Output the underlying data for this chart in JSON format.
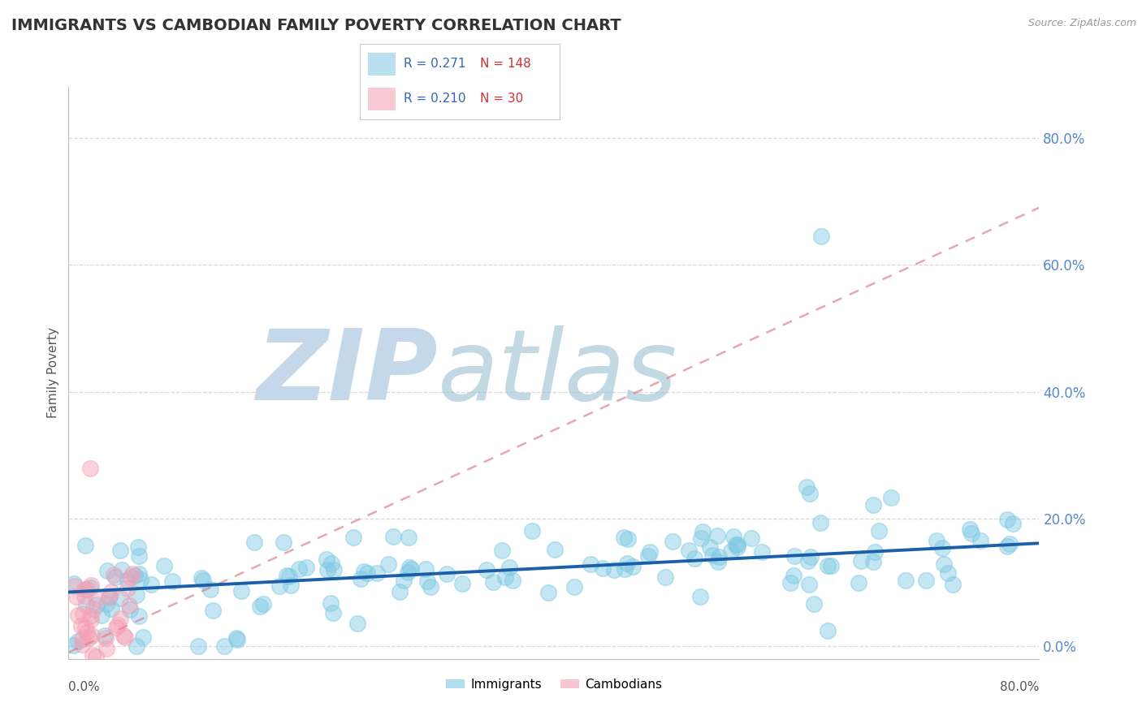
{
  "title": "IMMIGRANTS VS CAMBODIAN FAMILY POVERTY CORRELATION CHART",
  "source_text": "Source: ZipAtlas.com",
  "ylabel": "Family Poverty",
  "legend_label1": "Immigrants",
  "legend_label2": "Cambodians",
  "R1": 0.271,
  "N1": 148,
  "R2": 0.21,
  "N2": 30,
  "xlim": [
    0.0,
    0.8
  ],
  "ylim": [
    -0.02,
    0.88
  ],
  "yticks": [
    0.0,
    0.2,
    0.4,
    0.6,
    0.8
  ],
  "ytick_labels": [
    "0.0%",
    "20.0%",
    "40.0%",
    "60.0%",
    "80.0%"
  ],
  "xtick_labels": [
    "0.0%",
    "80.0%"
  ],
  "color_blue": "#7ec8e3",
  "color_pink": "#f4a0b5",
  "color_blue_line": "#1a5fa8",
  "color_pink_line": "#e06080",
  "color_pink_dashed": "#e08090",
  "watermark_zip": "ZIP",
  "watermark_atlas": "atlas",
  "watermark_color": "#c5d8ea",
  "background_color": "#ffffff",
  "grid_color": "#d0d0d0",
  "title_color": "#333333",
  "tick_color": "#5588cc",
  "source_color": "#999999"
}
